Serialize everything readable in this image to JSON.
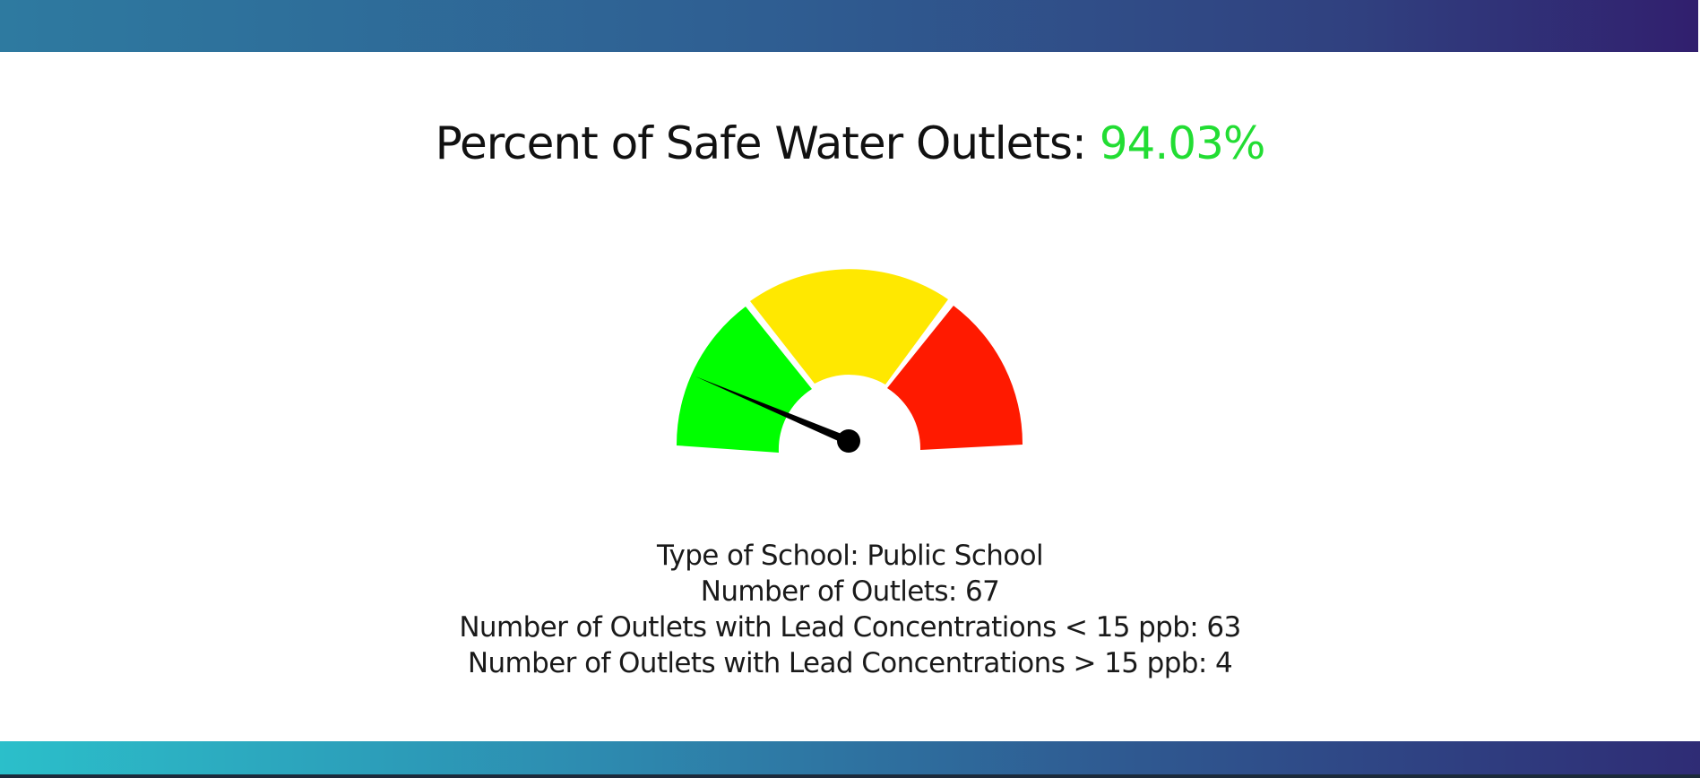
{
  "header": {
    "title_prefix": "Percent of Safe Water Outlets: ",
    "percent": "94.03%",
    "percent_color": "#22dd33"
  },
  "gauge": {
    "type": "gauge",
    "value_percent": 94.03,
    "segments": [
      {
        "color": "#00ff00"
      },
      {
        "color": "#ffe800"
      },
      {
        "color": "#ff1a00"
      }
    ],
    "needle_color": "#000000"
  },
  "details": {
    "school_type": "Type of School: Public School",
    "outlets": "Number of Outlets: 67",
    "below_limit": "Number of Outlets with Lead Concentrations < 15 ppb: 63",
    "above_limit": "Number of Outlets with Lead Concentrations > 15 ppb: 4"
  },
  "colors": {
    "top_band": "#2f5e92",
    "bottom_band": "#2d8bb0"
  }
}
